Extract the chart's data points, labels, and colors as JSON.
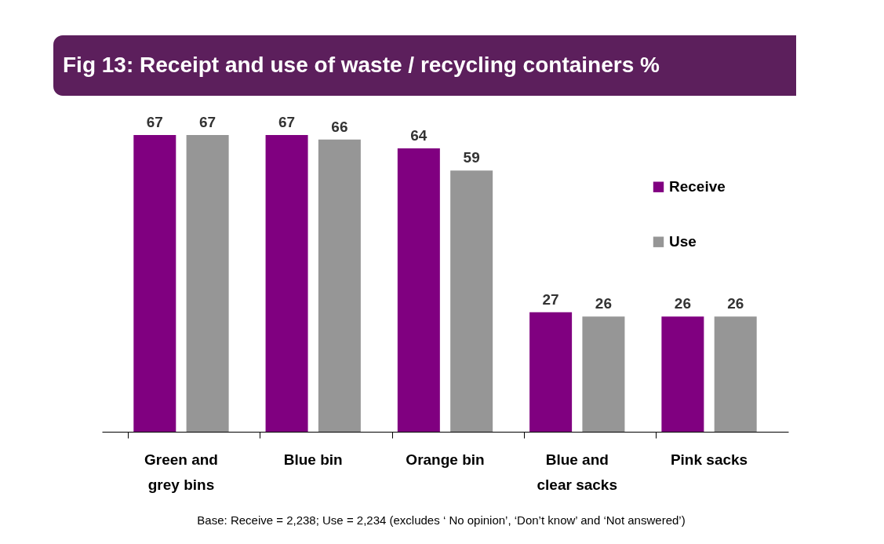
{
  "chart_data": {
    "type": "bar",
    "title": "Fig 13: Receipt and use of waste / recycling containers %",
    "categories": [
      "Green and grey bins",
      "Blue bin",
      "Orange bin",
      "Blue and clear sacks",
      "Pink sacks"
    ],
    "series": [
      {
        "name": "Receive",
        "color": "#800080",
        "values": [
          67,
          67,
          64,
          27,
          26
        ]
      },
      {
        "name": "Use",
        "color": "#969696",
        "values": [
          67,
          66,
          59,
          26,
          26
        ]
      }
    ],
    "data_labels": true,
    "legend": "right",
    "grid": false,
    "annotations": [
      "Base: Receive = 2,238; Use = 2,234 (excludes ‘ No opinion’, ‘Don’t know’ and ‘Not answered’)"
    ]
  }
}
